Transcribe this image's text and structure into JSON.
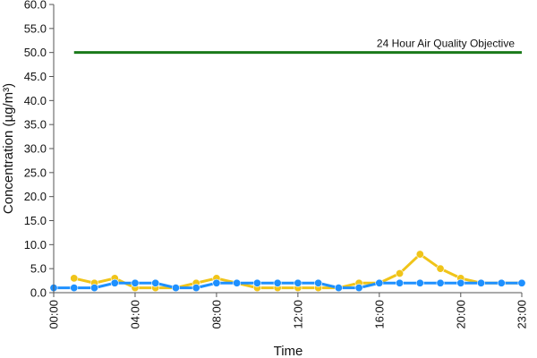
{
  "chart_data": {
    "type": "line",
    "title": "",
    "xlabel": "Time",
    "ylabel": "Concentration (µg/m³)",
    "ylim": [
      0,
      60
    ],
    "yticks": [
      "0.0",
      "5.0",
      "10.0",
      "15.0",
      "20.0",
      "25.0",
      "30.0",
      "35.0",
      "40.0",
      "45.0",
      "50.0",
      "55.0",
      "60.0"
    ],
    "x_range_hours": [
      0,
      23
    ],
    "xticks": [
      {
        "hour": 0,
        "label": "00:00"
      },
      {
        "hour": 4,
        "label": "04:00"
      },
      {
        "hour": 8,
        "label": "08:00"
      },
      {
        "hour": 12,
        "label": "12:00"
      },
      {
        "hour": 16,
        "label": "16:00"
      },
      {
        "hour": 20,
        "label": "20:00"
      },
      {
        "hour": 23,
        "label": "23:00"
      }
    ],
    "grid": false,
    "legend": "none",
    "series": [
      {
        "color": "#f0c419",
        "x": [
          1,
          2,
          3,
          4,
          5,
          6,
          7,
          8,
          9,
          10,
          11,
          12,
          13,
          14,
          15,
          16,
          17,
          18,
          19,
          20,
          21,
          22,
          23
        ],
        "values": [
          3,
          2,
          3,
          1,
          1,
          1,
          2,
          3,
          2,
          1,
          1,
          1,
          1,
          1,
          2,
          2,
          4,
          8,
          5,
          3,
          2,
          2,
          2
        ]
      },
      {
        "color": "#1e90ff",
        "x": [
          0,
          1,
          2,
          3,
          4,
          5,
          6,
          7,
          8,
          9,
          10,
          11,
          12,
          13,
          14,
          15,
          16,
          17,
          18,
          19,
          20,
          21,
          22,
          23
        ],
        "values": [
          1,
          1,
          1,
          2,
          2,
          2,
          1,
          1,
          2,
          2,
          2,
          2,
          2,
          2,
          1,
          1,
          2,
          2,
          2,
          2,
          2,
          2,
          2,
          2
        ]
      }
    ],
    "reference_line": {
      "label": "24 Hour Air Quality Objective",
      "value": 50,
      "x_start": 1,
      "x_end": 23,
      "color": "#1a7a1a"
    }
  }
}
